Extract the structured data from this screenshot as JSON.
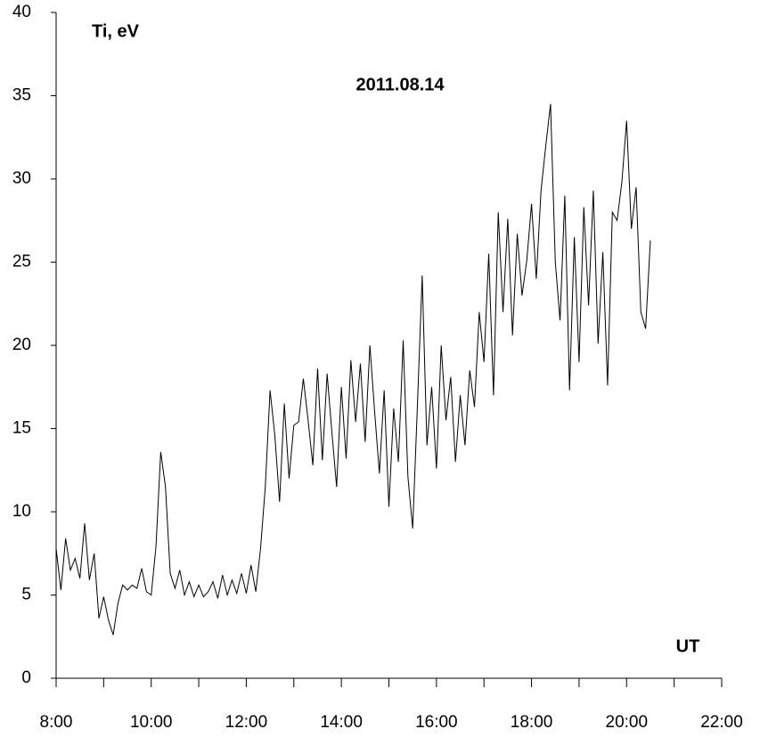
{
  "chart_data": {
    "type": "line",
    "title": "2011.08.14",
    "ylabel": "Ti, eV",
    "xlabel": "UT",
    "color": "#000000",
    "x": [
      8,
      8.1,
      8.2,
      8.3,
      8.4,
      8.5,
      8.6,
      8.7,
      8.8,
      8.9,
      9,
      9.1,
      9.2,
      9.3,
      9.4,
      9.5,
      9.6,
      9.7,
      9.8,
      9.9,
      10,
      10.1,
      10.2,
      10.3,
      10.4,
      10.5,
      10.6,
      10.7,
      10.8,
      10.9,
      11,
      11.1,
      11.2,
      11.3,
      11.4,
      11.5,
      11.6,
      11.7,
      11.8,
      11.9,
      12,
      12.1,
      12.2,
      12.3,
      12.4,
      12.5,
      12.6,
      12.7,
      12.8,
      12.9,
      13,
      13.1,
      13.2,
      13.3,
      13.4,
      13.5,
      13.6,
      13.7,
      13.8,
      13.9,
      14,
      14.1,
      14.2,
      14.3,
      14.4,
      14.5,
      14.6,
      14.7,
      14.8,
      14.9,
      15,
      15.1,
      15.2,
      15.3,
      15.4,
      15.5,
      15.6,
      15.7,
      15.8,
      15.9,
      16,
      16.1,
      16.2,
      16.3,
      16.4,
      16.5,
      16.6,
      16.7,
      16.8,
      16.9,
      17,
      17.1,
      17.2,
      17.3,
      17.4,
      17.5,
      17.6,
      17.7,
      17.8,
      17.9,
      18,
      18.1,
      18.2,
      18.3,
      18.4,
      18.5,
      18.6,
      18.7,
      18.8,
      18.9,
      19,
      19.1,
      19.2,
      19.3,
      19.4,
      19.5,
      19.6,
      19.7,
      19.8,
      19.9,
      20,
      20.1,
      20.2,
      20.3,
      20.4,
      20.5
    ],
    "values": [
      7.8,
      5.3,
      8.4,
      6.5,
      7.2,
      6.0,
      9.3,
      5.9,
      7.5,
      3.6,
      4.9,
      3.5,
      2.6,
      4.5,
      5.6,
      5.3,
      5.6,
      5.4,
      6.6,
      5.2,
      5.0,
      7.9,
      13.6,
      11.5,
      6.3,
      5.4,
      6.5,
      5.0,
      5.8,
      4.9,
      5.6,
      4.9,
      5.2,
      5.8,
      4.8,
      6.2,
      5.0,
      5.9,
      5.1,
      6.3,
      5.1,
      6.8,
      5.2,
      7.8,
      11.5,
      17.3,
      14.6,
      10.6,
      16.5,
      12.0,
      15.2,
      15.4,
      18.0,
      15.5,
      12.8,
      18.6,
      13.1,
      18.3,
      14.8,
      11.5,
      17.5,
      13.2,
      19.1,
      15.4,
      18.9,
      14.2,
      20.0,
      16.0,
      12.3,
      17.3,
      10.3,
      16.2,
      13.0,
      20.3,
      12.1,
      9.0,
      16.4,
      24.2,
      14.0,
      17.5,
      12.6,
      20.0,
      15.5,
      18.1,
      13.0,
      17.0,
      14.0,
      18.5,
      16.3,
      22.0,
      19.0,
      25.5,
      17.0,
      28.0,
      22.0,
      27.6,
      20.6,
      26.7,
      23.0,
      25.1,
      28.5,
      24.0,
      29.3,
      32.0,
      34.5,
      25.0,
      21.5,
      29.0,
      17.3,
      26.5,
      19.0,
      28.3,
      22.4,
      29.3,
      20.1,
      25.6,
      17.6,
      28.0,
      27.5,
      29.8,
      33.5,
      27.0,
      29.5,
      22.0,
      21.0,
      26.3
    ],
    "xlim": [
      8,
      22
    ],
    "xticks": [
      {
        "value": 8,
        "label": "8:00"
      },
      {
        "value": 10,
        "label": "10:00"
      },
      {
        "value": 12,
        "label": "12:00"
      },
      {
        "value": 14,
        "label": "14:00"
      },
      {
        "value": 16,
        "label": "16:00"
      },
      {
        "value": 18,
        "label": "18:00"
      },
      {
        "value": 20,
        "label": "20:00"
      },
      {
        "value": 22,
        "label": "22:00"
      }
    ],
    "xminorticks": [
      9,
      11,
      13,
      15,
      17,
      19,
      21
    ],
    "ylim": [
      0,
      40
    ],
    "yticks": [
      0,
      5,
      10,
      15,
      20,
      25,
      30,
      35,
      40
    ]
  }
}
